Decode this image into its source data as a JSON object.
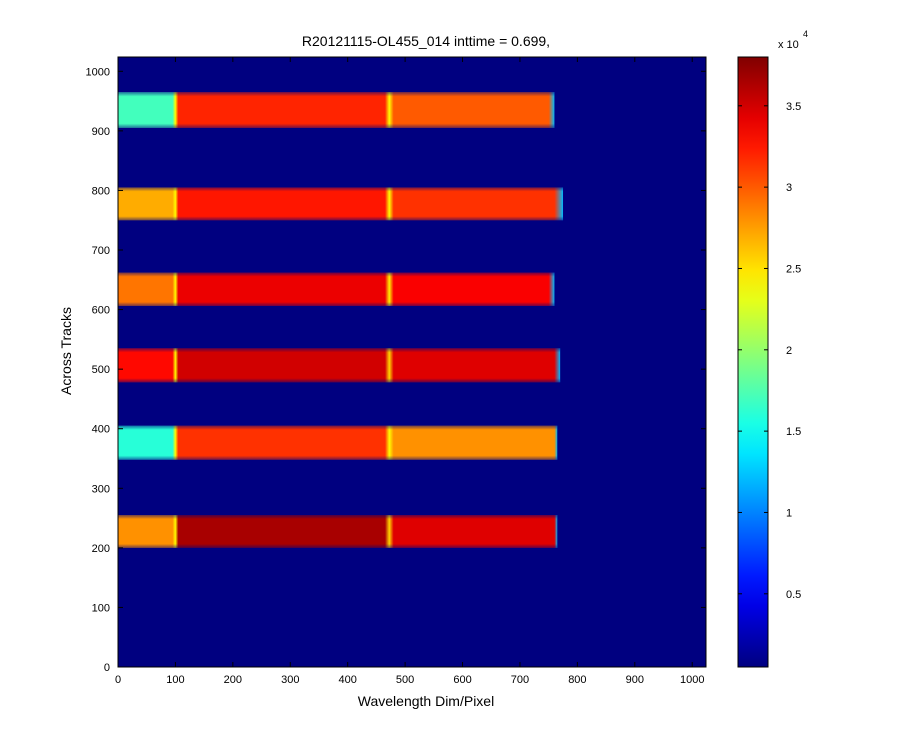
{
  "chart_data": {
    "type": "heatmap",
    "title": "R20121115-OL455_014 inttime = 0.699,",
    "xlabel": "Wavelength Dim/Pixel",
    "ylabel": "Across Tracks",
    "xlim": [
      0,
      1024
    ],
    "ylim": [
      0,
      1024
    ],
    "x_ticks": [
      0,
      100,
      200,
      300,
      400,
      500,
      600,
      700,
      800,
      900,
      1000
    ],
    "y_ticks": [
      0,
      100,
      200,
      300,
      400,
      500,
      600,
      700,
      800,
      900,
      1000
    ],
    "colormap": "jet",
    "background_value": 500,
    "colorbar": {
      "clim": [
        500,
        38000
      ],
      "tick_labels": [
        "0.5",
        "1",
        "1.5",
        "2",
        "2.5",
        "3",
        "3.5"
      ],
      "tick_values": [
        5000,
        10000,
        15000,
        20000,
        25000,
        30000,
        35000
      ],
      "exponent_prefix": "x 10",
      "exponent": "4"
    },
    "stripes": [
      {
        "y_range": [
          200,
          255
        ],
        "x_end": 765,
        "segments": [
          {
            "x_range": [
              0,
              95
            ],
            "value": 28000
          },
          {
            "x_range": [
              105,
              465
            ],
            "value": 36500
          },
          {
            "x_range": [
              480,
              760
            ],
            "value": 34500
          }
        ]
      },
      {
        "y_range": [
          348,
          405
        ],
        "x_end": 765,
        "segments": [
          {
            "x_range": [
              0,
              95
            ],
            "value": 16000
          },
          {
            "x_range": [
              105,
              465
            ],
            "value": 31500
          },
          {
            "x_range": [
              480,
              760
            ],
            "value": 28000
          }
        ]
      },
      {
        "y_range": [
          478,
          535
        ],
        "x_end": 770,
        "segments": [
          {
            "x_range": [
              0,
              95
            ],
            "value": 33000
          },
          {
            "x_range": [
              105,
              465
            ],
            "value": 35000
          },
          {
            "x_range": [
              480,
              760
            ],
            "value": 34500
          }
        ]
      },
      {
        "y_range": [
          606,
          662
        ],
        "x_end": 760,
        "segments": [
          {
            "x_range": [
              0,
              95
            ],
            "value": 29000
          },
          {
            "x_range": [
              105,
              465
            ],
            "value": 34000
          },
          {
            "x_range": [
              480,
              750
            ],
            "value": 33500
          }
        ]
      },
      {
        "y_range": [
          750,
          805
        ],
        "x_end": 775,
        "segments": [
          {
            "x_range": [
              0,
              95
            ],
            "value": 27000
          },
          {
            "x_range": [
              105,
              465
            ],
            "value": 32500
          },
          {
            "x_range": [
              480,
              760
            ],
            "value": 31500
          }
        ]
      },
      {
        "y_range": [
          905,
          965
        ],
        "x_end": 760,
        "segments": [
          {
            "x_range": [
              0,
              95
            ],
            "value": 17000
          },
          {
            "x_range": [
              105,
              465
            ],
            "value": 32000
          },
          {
            "x_range": [
              480,
              750
            ],
            "value": 30000
          }
        ]
      }
    ]
  }
}
